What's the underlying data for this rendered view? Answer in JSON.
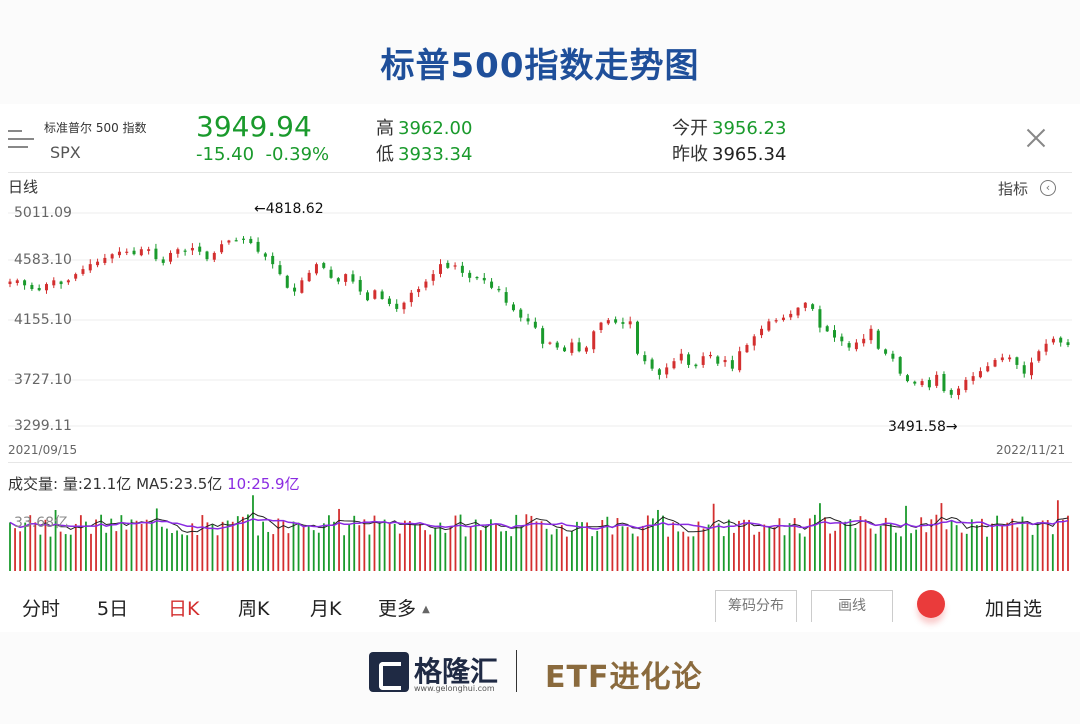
{
  "page_title": "标普500指数走势图",
  "quote": {
    "name": "标准普尔 500 指数",
    "code": "SPX",
    "price": "3949.94",
    "change": "-15.40",
    "change_pct": "-0.39%",
    "high_label": "高",
    "high": "3962.00",
    "low_label": "低",
    "low": "3933.34",
    "open_label": "今开",
    "open": "3956.23",
    "prev_close_label": "昨收",
    "prev_close": "3965.34"
  },
  "chart_header": {
    "period_label": "日线",
    "indicator_label": "指标"
  },
  "colors": {
    "up": "#d32f2f",
    "down": "#1a9a2c",
    "accent_title": "#1f4f9a",
    "ma10": "#8a2be2",
    "ma5": "#222222"
  },
  "chart_data": {
    "type": "candlestick",
    "y_tick_labels": [
      "5011.09",
      "4583.10",
      "4155.10",
      "3727.10",
      "3299.11"
    ],
    "ylim": [
      3299.11,
      5011.09
    ],
    "x_start": "2021/09/15",
    "x_end": "2022/11/21",
    "max_annotation": "←4818.62",
    "min_annotation": "3491.58→",
    "close_path": [
      4460,
      4470,
      4430,
      4400,
      4390,
      4440,
      4470,
      4440,
      4470,
      4520,
      4560,
      4600,
      4620,
      4650,
      4680,
      4700,
      4700,
      4680,
      4720,
      4720,
      4640,
      4610,
      4690,
      4720,
      4700,
      4730,
      4700,
      4640,
      4690,
      4760,
      4790,
      4790,
      4800,
      4770,
      4700,
      4660,
      4600,
      4520,
      4410,
      4380,
      4470,
      4530,
      4600,
      4570,
      4490,
      4460,
      4520,
      4460,
      4380,
      4310,
      4390,
      4320,
      4280,
      4240,
      4290,
      4370,
      4400,
      4460,
      4520,
      4600,
      4570,
      4590,
      4530,
      4490,
      4490,
      4470,
      4410,
      4390,
      4290,
      4230,
      4170,
      4140,
      4090,
      3960,
      3970,
      3930,
      3900,
      3970,
      3900,
      3930,
      4060,
      4130,
      4150,
      4130,
      4120,
      4140,
      3880,
      3820,
      3760,
      3710,
      3770,
      3820,
      3880,
      3790,
      3780,
      3860,
      3870,
      3800,
      3830,
      3760,
      3900,
      3950,
      4020,
      4080,
      4140,
      4150,
      4170,
      4200,
      4250,
      4290,
      4240,
      4090,
      4060,
      4010,
      3980,
      3930,
      3970,
      4000,
      4080,
      3920,
      3880,
      3840,
      3720,
      3660,
      3640,
      3660,
      3610,
      3710,
      3580,
      3550,
      3600,
      3670,
      3700,
      3740,
      3780,
      3830,
      3850,
      3850,
      3790,
      3720,
      3810,
      3900,
      3960,
      4000,
      3970,
      3950
    ]
  },
  "volume": {
    "legend_prefix": "成交量:",
    "vol_text": "量:21.1亿",
    "ma5_text": "MA5:23.5亿",
    "ma10_text": "10:25.9亿",
    "axis_label": "33.68亿"
  },
  "tabs": [
    {
      "label": "分时"
    },
    {
      "label": "5日"
    },
    {
      "label": "日K"
    },
    {
      "label": "周K"
    },
    {
      "label": "月K"
    },
    {
      "label": "更多"
    }
  ],
  "buttons": {
    "chips": "筹码分布",
    "draw": "画线",
    "add_watch": "加自选"
  },
  "footer": {
    "brand": "格隆汇",
    "url": "www.gelonghui.com",
    "column": "ETF进化论"
  }
}
